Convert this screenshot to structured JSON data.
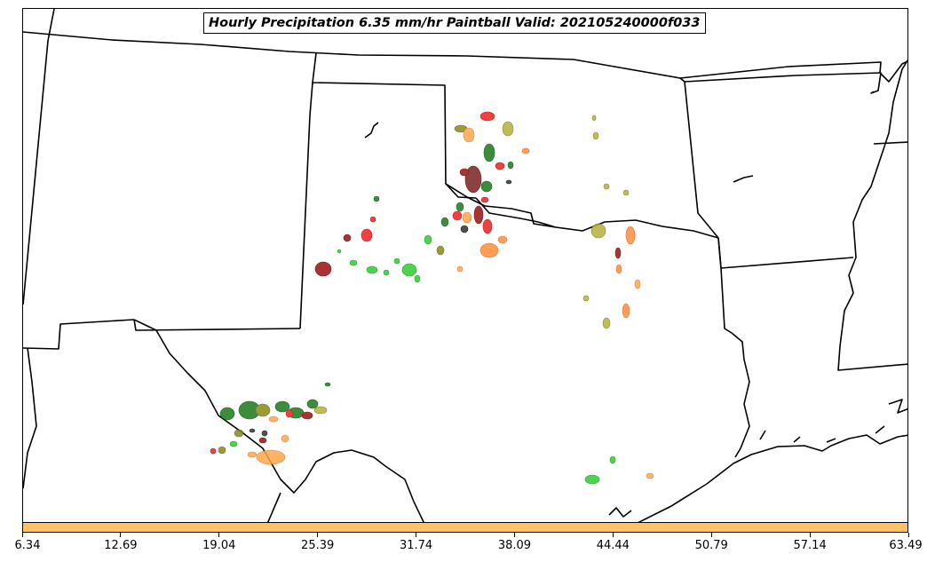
{
  "title": "Hourly Precipitation 6.35 mm/hr Paintball Valid: 202105240000f033",
  "colorbar": {
    "color": "#ffc266",
    "ticks": [
      "6.34",
      "12.69",
      "19.04",
      "25.39",
      "31.74",
      "38.09",
      "44.44",
      "50.79",
      "57.14",
      "63.49"
    ]
  },
  "colors": {
    "dark_green": "#1a7a1a",
    "green": "#2ecc2e",
    "red": "#ee2020",
    "dark_red": "#9a1010",
    "orange": "#ff8c3a",
    "light_orange": "#ffa64d",
    "olive": "#8a8a10",
    "khaki": "#b5b03a",
    "maroon": "#7a2020",
    "dark_gray": "#333333"
  }
}
